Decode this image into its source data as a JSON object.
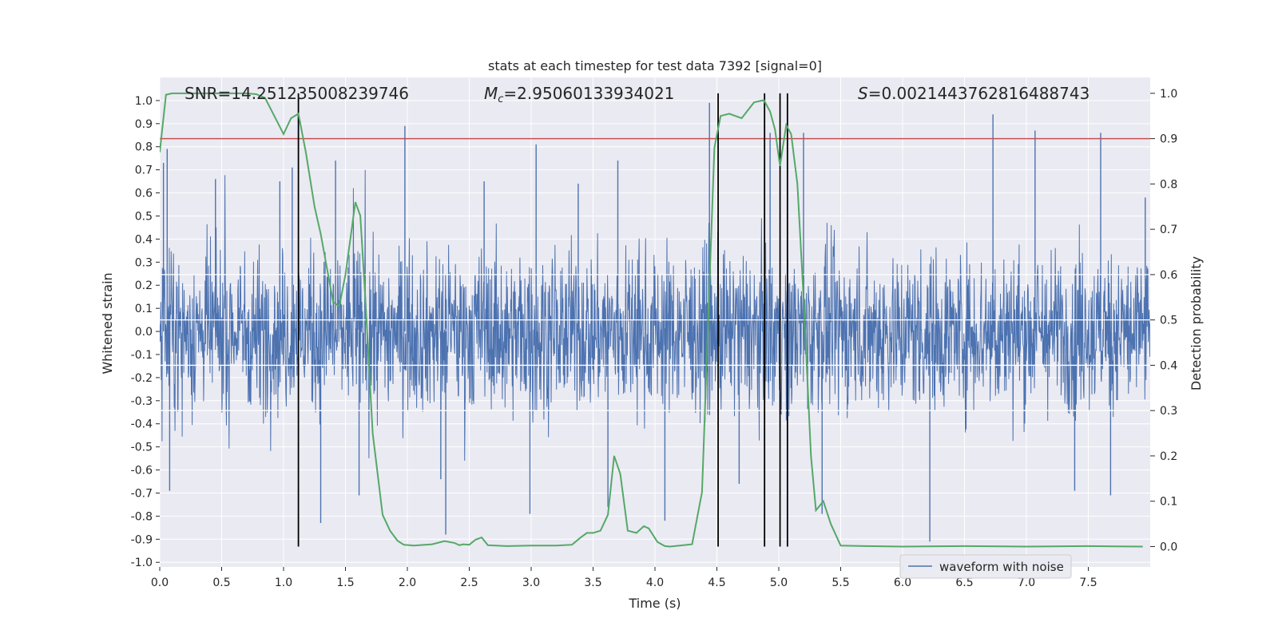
{
  "chart_data": {
    "type": "line",
    "title": "stats at each timestep for test data 7392 [signal=0]",
    "xlabel": "Time (s)",
    "ylabel_left": "Whitened strain",
    "ylabel_right": "Detection probability",
    "xlim": [
      0.0,
      8.0
    ],
    "ylim_left": [
      -1.02,
      1.1
    ],
    "ylim_right": [
      -0.045,
      1.035
    ],
    "x_ticks": [
      "0.0",
      "0.5",
      "1.0",
      "1.5",
      "2.0",
      "2.5",
      "3.0",
      "3.5",
      "4.0",
      "4.5",
      "5.0",
      "5.5",
      "6.0",
      "6.5",
      "7.0",
      "7.5"
    ],
    "y_left_ticks": [
      "1.0",
      "0.9",
      "0.8",
      "0.7",
      "0.6",
      "0.5",
      "0.4",
      "0.3",
      "0.2",
      "0.1",
      "0.0",
      "-0.1",
      "-0.2",
      "-0.3",
      "-0.4",
      "-0.5",
      "-0.6",
      "-0.7",
      "-0.8",
      "-0.9",
      "-1.0"
    ],
    "y_right_ticks": [
      "1.0",
      "0.9",
      "0.8",
      "0.7",
      "0.6",
      "0.5",
      "0.4",
      "0.3",
      "0.2",
      "0.1",
      "0.0"
    ],
    "annotations": {
      "snr": "SNR=14.251235008239746",
      "mc_symbol": "M",
      "mc_sub": "c",
      "mc_value": "=2.95060133934021",
      "s_symbol": "S",
      "s_value": "=0.0021443762816488743"
    },
    "threshold": 0.9,
    "vertical_lines_x": [
      1.12,
      4.51,
      4.885,
      5.01,
      5.07
    ],
    "legend": [
      "waveform with noise"
    ],
    "legend_location": "lower right",
    "colors": {
      "waveform": "#4c72b0",
      "probability": "#55a868",
      "threshold": "#c44e52",
      "marker": "#000000",
      "background": "#eaeaf2",
      "grid": "#ffffff"
    },
    "series": [
      {
        "name": "waveform with noise",
        "axis": "left",
        "description": "dense whitened strain noise, amplitude mostly within +/-0.4 with spikes to about +/-0.9",
        "spikes": [
          {
            "x": 0.03,
            "y": 0.73
          },
          {
            "x": 0.06,
            "y": 0.79
          },
          {
            "x": 0.08,
            "y": -0.69
          },
          {
            "x": 0.45,
            "y": 0.66
          },
          {
            "x": 0.97,
            "y": 0.65
          },
          {
            "x": 1.07,
            "y": 0.71
          },
          {
            "x": 1.3,
            "y": -0.83
          },
          {
            "x": 1.42,
            "y": 0.74
          },
          {
            "x": 1.61,
            "y": -0.71
          },
          {
            "x": 1.98,
            "y": 0.89
          },
          {
            "x": 2.27,
            "y": -0.64
          },
          {
            "x": 2.31,
            "y": -0.88
          },
          {
            "x": 2.62,
            "y": 0.65
          },
          {
            "x": 2.99,
            "y": -0.79
          },
          {
            "x": 3.04,
            "y": 0.81
          },
          {
            "x": 3.38,
            "y": 0.64
          },
          {
            "x": 3.62,
            "y": -0.76
          },
          {
            "x": 3.7,
            "y": 0.74
          },
          {
            "x": 4.08,
            "y": -0.82
          },
          {
            "x": 4.44,
            "y": 0.99
          },
          {
            "x": 4.68,
            "y": -0.66
          },
          {
            "x": 4.93,
            "y": 0.86
          },
          {
            "x": 5.2,
            "y": 0.86
          },
          {
            "x": 5.35,
            "y": -0.79
          },
          {
            "x": 6.22,
            "y": -0.91
          },
          {
            "x": 6.73,
            "y": 0.94
          },
          {
            "x": 7.07,
            "y": 0.87
          },
          {
            "x": 7.39,
            "y": -0.69
          },
          {
            "x": 7.6,
            "y": 0.86
          },
          {
            "x": 7.68,
            "y": -0.71
          },
          {
            "x": 7.96,
            "y": 0.58
          }
        ]
      },
      {
        "name": "detection probability",
        "axis": "right",
        "x": [
          0.0,
          0.05,
          0.1,
          0.2,
          0.3,
          0.4,
          0.5,
          0.6,
          0.7,
          0.78,
          0.85,
          1.0,
          1.06,
          1.12,
          1.18,
          1.25,
          1.3,
          1.36,
          1.4,
          1.45,
          1.5,
          1.55,
          1.58,
          1.62,
          1.66,
          1.72,
          1.8,
          1.86,
          1.92,
          1.97,
          2.05,
          2.2,
          2.3,
          2.38,
          2.42,
          2.45,
          2.5,
          2.55,
          2.6,
          2.65,
          2.8,
          3.0,
          3.2,
          3.33,
          3.4,
          3.45,
          3.5,
          3.56,
          3.62,
          3.67,
          3.72,
          3.78,
          3.85,
          3.91,
          3.95,
          4.02,
          4.08,
          4.12,
          4.2,
          4.3,
          4.38,
          4.43,
          4.48,
          4.53,
          4.6,
          4.7,
          4.8,
          4.88,
          4.93,
          4.97,
          5.01,
          5.06,
          5.1,
          5.15,
          5.2,
          5.26,
          5.3,
          5.36,
          5.42,
          5.5,
          5.7,
          6.0,
          6.5,
          7.0,
          7.5,
          7.94
        ],
        "y": [
          0.87,
          0.997,
          1.0,
          1.0,
          1.0,
          1.0,
          1.0,
          1.0,
          1.0,
          0.998,
          0.99,
          0.91,
          0.945,
          0.955,
          0.87,
          0.75,
          0.69,
          0.6,
          0.54,
          0.53,
          0.6,
          0.7,
          0.76,
          0.73,
          0.55,
          0.25,
          0.07,
          0.035,
          0.013,
          0.004,
          0.002,
          0.005,
          0.012,
          0.008,
          0.003,
          0.005,
          0.004,
          0.015,
          0.02,
          0.003,
          0.001,
          0.002,
          0.002,
          0.004,
          0.02,
          0.03,
          0.03,
          0.035,
          0.07,
          0.2,
          0.16,
          0.035,
          0.03,
          0.045,
          0.04,
          0.01,
          0.001,
          0.0,
          0.002,
          0.005,
          0.12,
          0.5,
          0.88,
          0.95,
          0.955,
          0.945,
          0.98,
          0.985,
          0.96,
          0.92,
          0.84,
          0.93,
          0.91,
          0.8,
          0.55,
          0.2,
          0.08,
          0.1,
          0.05,
          0.002,
          0.001,
          0.0,
          0.001,
          0.0,
          0.001,
          0.0
        ]
      }
    ]
  }
}
